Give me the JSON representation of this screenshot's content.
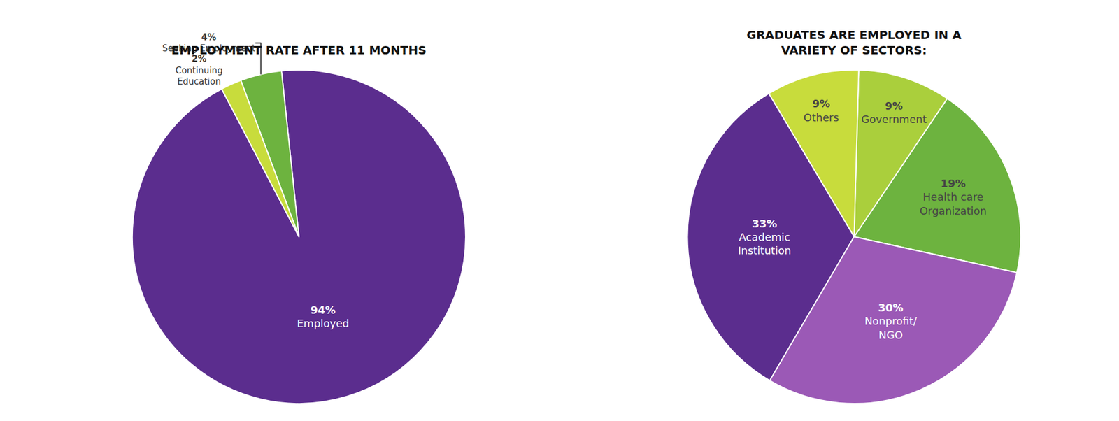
{
  "chart_data": [
    {
      "type": "pie",
      "title": "EMPLOYMENT RATE AFTER 11 MONTHS",
      "categories": [
        "Employed",
        "Seeking Employment",
        "Continuing\nEducation"
      ],
      "values": [
        94,
        4,
        2
      ],
      "value_labels": [
        "94%",
        "4%",
        "2%"
      ],
      "colors": [
        "#5b2d8e",
        "#6db33f",
        "#c8dc3c"
      ],
      "data_labels": true
    },
    {
      "type": "pie",
      "title": "GRADUATES ARE EMPLOYED IN A\nVARIETY OF SECTORS:",
      "categories": [
        "Health care\nOrganization",
        "Government",
        "Others",
        "Academic\nInstitution",
        "Nonprofit/\nNGO"
      ],
      "values": [
        19,
        9,
        9,
        33,
        30
      ],
      "value_labels": [
        "19%",
        "9%",
        "9%",
        "33%",
        "30%"
      ],
      "colors": [
        "#6db33f",
        "#aacf3c",
        "#c8dc3c",
        "#5b2d8e",
        "#9b59b6"
      ],
      "data_labels": true
    }
  ]
}
